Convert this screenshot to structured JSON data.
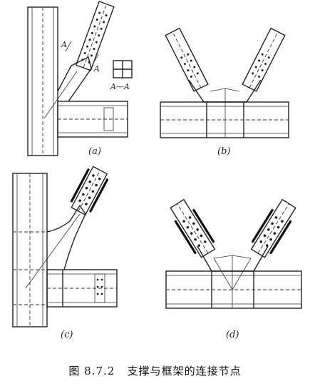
{
  "panels": [
    {
      "id": "a",
      "label": "(a)"
    },
    {
      "id": "b",
      "label": "(b)"
    },
    {
      "id": "c",
      "label": "(c)"
    },
    {
      "id": "d",
      "label": "(d)"
    }
  ],
  "section_marks": {
    "cut_left": "A",
    "cut_right": "A",
    "section_label": "A—A"
  },
  "caption": {
    "number": "图 8.7.2",
    "text": "支撑与框架的连接节点"
  }
}
